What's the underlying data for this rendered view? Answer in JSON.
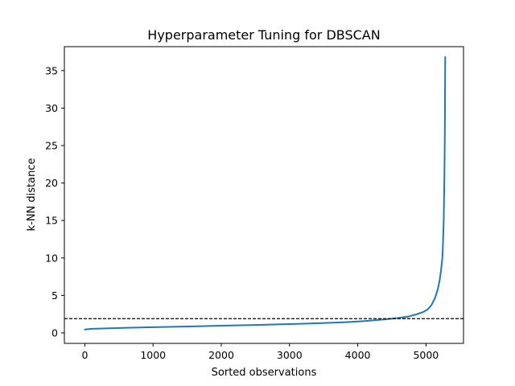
{
  "chart_data": {
    "type": "line",
    "title": "Hyperparameter Tuning for DBSCAN",
    "xlabel": "Sorted observations",
    "ylabel": "k-NN distance",
    "xlim": [
      -300,
      5550
    ],
    "ylim": [
      -1.4,
      38.2
    ],
    "xticks": [
      0,
      1000,
      2000,
      3000,
      4000,
      5000
    ],
    "yticks": [
      0,
      5,
      10,
      15,
      20,
      25,
      30,
      35
    ],
    "grid": false,
    "series": [
      {
        "color": "#1f77b4",
        "x": [
          0,
          100,
          300,
          600,
          1000,
          1500,
          2000,
          2500,
          3000,
          3400,
          3800,
          4100,
          4400,
          4600,
          4750,
          4850,
          4950,
          5020,
          5080,
          5130,
          5170,
          5200,
          5220,
          5240,
          5250,
          5260,
          5265,
          5270,
          5275,
          5278,
          5280,
          5282
        ],
        "y": [
          0.45,
          0.55,
          0.6,
          0.68,
          0.76,
          0.86,
          0.96,
          1.06,
          1.18,
          1.28,
          1.42,
          1.58,
          1.8,
          2.0,
          2.2,
          2.45,
          2.75,
          3.1,
          3.7,
          4.6,
          5.7,
          7.0,
          8.3,
          10.0,
          12.0,
          15.0,
          18.0,
          21.0,
          25.0,
          29.0,
          33.0,
          36.8
        ]
      }
    ],
    "reference_line": {
      "y": 1.9,
      "style": "dashed",
      "color": "#000000"
    }
  }
}
